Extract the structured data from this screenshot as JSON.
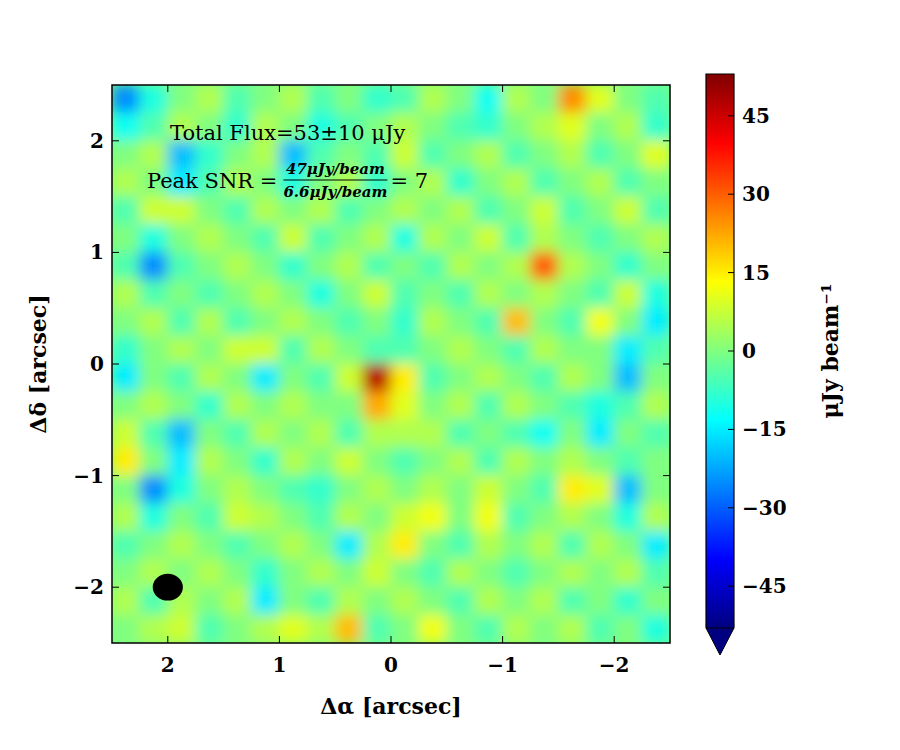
{
  "chart_data": {
    "type": "heatmap",
    "x_label": "Δα [arcsec]",
    "y_label": "Δδ [arcsec]",
    "annotations": {
      "flux": "Total Flux=53±10 μJy",
      "snr_label": "Peak SNR =",
      "snr_numerator": "47μJy/beam",
      "snr_denominator": "6.6μJy/beam",
      "snr_result": "= 7"
    },
    "xlim": [
      2.5,
      -2.5
    ],
    "ylim": [
      -2.5,
      2.5
    ],
    "xticks": [
      2,
      1,
      0,
      {
        "value": -1,
        "label": "−1"
      },
      {
        "value": -2,
        "label": "−2"
      }
    ],
    "yticks": [
      {
        "value": -2,
        "label": "−2"
      },
      {
        "value": -1,
        "label": "−1"
      },
      0,
      1,
      2
    ],
    "x": [
      2.375,
      2.125,
      1.875,
      1.625,
      1.375,
      1.125,
      0.875,
      0.625,
      0.375,
      0.125,
      -0.125,
      -0.375,
      -0.625,
      -0.875,
      -1.125,
      -1.375,
      -1.625,
      -1.875,
      -2.125,
      -2.375
    ],
    "y": [
      2.375,
      2.125,
      1.875,
      1.625,
      1.375,
      1.125,
      0.875,
      0.625,
      0.375,
      0.125,
      -0.125,
      -0.375,
      -0.625,
      -0.875,
      -1.125,
      -1.375,
      -1.625,
      -1.875,
      -2.125,
      -2.375
    ],
    "cells": [
      [
        -25,
        -10,
        0,
        5,
        -5,
        0,
        5,
        -5,
        0,
        -8,
        -5,
        5,
        0,
        -12,
        5,
        0,
        25,
        10,
        0,
        -5
      ],
      [
        -12,
        -5,
        5,
        0,
        -8,
        5,
        0,
        -10,
        -5,
        0,
        5,
        0,
        -5,
        -8,
        0,
        5,
        10,
        0,
        5,
        -8
      ],
      [
        0,
        5,
        -20,
        -8,
        0,
        5,
        -20,
        -5,
        0,
        -5,
        8,
        -5,
        0,
        5,
        -5,
        0,
        5,
        -5,
        0,
        10
      ],
      [
        5,
        0,
        -15,
        -5,
        5,
        0,
        -10,
        0,
        5,
        -8,
        0,
        5,
        -8,
        0,
        5,
        -5,
        0,
        5,
        -5,
        0
      ],
      [
        -5,
        8,
        8,
        0,
        -5,
        5,
        0,
        5,
        -5,
        0,
        5,
        0,
        5,
        -5,
        0,
        8,
        -5,
        0,
        8,
        -5
      ],
      [
        0,
        -10,
        0,
        5,
        0,
        -5,
        8,
        -5,
        0,
        5,
        -10,
        5,
        0,
        8,
        -5,
        5,
        0,
        -5,
        0,
        5
      ],
      [
        -5,
        -25,
        -5,
        0,
        5,
        0,
        -8,
        0,
        5,
        -5,
        0,
        -5,
        5,
        0,
        5,
        30,
        5,
        0,
        -8,
        0
      ],
      [
        5,
        -5,
        0,
        -5,
        0,
        5,
        0,
        -10,
        0,
        8,
        -5,
        0,
        -5,
        5,
        0,
        5,
        0,
        -5,
        8,
        -10
      ],
      [
        0,
        5,
        -5,
        5,
        -5,
        0,
        5,
        0,
        -5,
        0,
        -8,
        5,
        0,
        -5,
        20,
        0,
        -5,
        12,
        0,
        -15
      ],
      [
        -8,
        0,
        5,
        0,
        8,
        8,
        -5,
        5,
        0,
        -5,
        -5,
        0,
        5,
        0,
        -5,
        5,
        0,
        0,
        -15,
        -5
      ],
      [
        -15,
        0,
        -5,
        5,
        0,
        -15,
        0,
        -5,
        8,
        47,
        15,
        -5,
        0,
        5,
        0,
        -5,
        5,
        0,
        -20,
        0
      ],
      [
        0,
        5,
        0,
        -8,
        5,
        0,
        5,
        0,
        0,
        22,
        10,
        0,
        5,
        -5,
        5,
        0,
        -5,
        -10,
        -5,
        5
      ],
      [
        8,
        -5,
        -20,
        0,
        -5,
        5,
        0,
        5,
        -5,
        5,
        5,
        5,
        -5,
        0,
        -5,
        -12,
        0,
        -15,
        0,
        -5
      ],
      [
        15,
        0,
        -15,
        5,
        0,
        -8,
        5,
        0,
        8,
        0,
        -5,
        0,
        5,
        -5,
        5,
        0,
        5,
        0,
        -5,
        0
      ],
      [
        0,
        -25,
        -10,
        0,
        5,
        0,
        -5,
        -8,
        0,
        5,
        0,
        5,
        0,
        8,
        0,
        -5,
        15,
        10,
        -20,
        0
      ],
      [
        5,
        -10,
        0,
        -5,
        8,
        5,
        0,
        -5,
        5,
        0,
        8,
        12,
        0,
        12,
        -5,
        0,
        5,
        0,
        -10,
        5
      ],
      [
        -5,
        0,
        5,
        0,
        -5,
        0,
        5,
        0,
        -15,
        5,
        15,
        0,
        -5,
        5,
        0,
        5,
        -5,
        5,
        0,
        -15
      ],
      [
        0,
        5,
        0,
        5,
        0,
        -8,
        0,
        5,
        0,
        8,
        0,
        -5,
        5,
        0,
        -5,
        0,
        5,
        0,
        5,
        -5
      ],
      [
        5,
        -5,
        5,
        0,
        5,
        -15,
        0,
        -5,
        5,
        0,
        5,
        0,
        -5,
        5,
        0,
        5,
        -5,
        0,
        -8,
        0
      ],
      [
        0,
        5,
        8,
        -5,
        0,
        5,
        10,
        5,
        20,
        -5,
        0,
        12,
        0,
        -5,
        5,
        0,
        5,
        -5,
        0,
        -10
      ]
    ],
    "colorbar": {
      "label": "μJy beam⁻¹",
      "range": [
        -53,
        53
      ],
      "ticks": [
        {
          "value": -45,
          "label": "−45"
        },
        {
          "value": -30,
          "label": "−30"
        },
        {
          "value": -15,
          "label": "−15"
        },
        0,
        15,
        30,
        45
      ]
    },
    "beam": {
      "center": [
        2,
        -2
      ],
      "width": 0.27,
      "height": 0.24
    }
  }
}
